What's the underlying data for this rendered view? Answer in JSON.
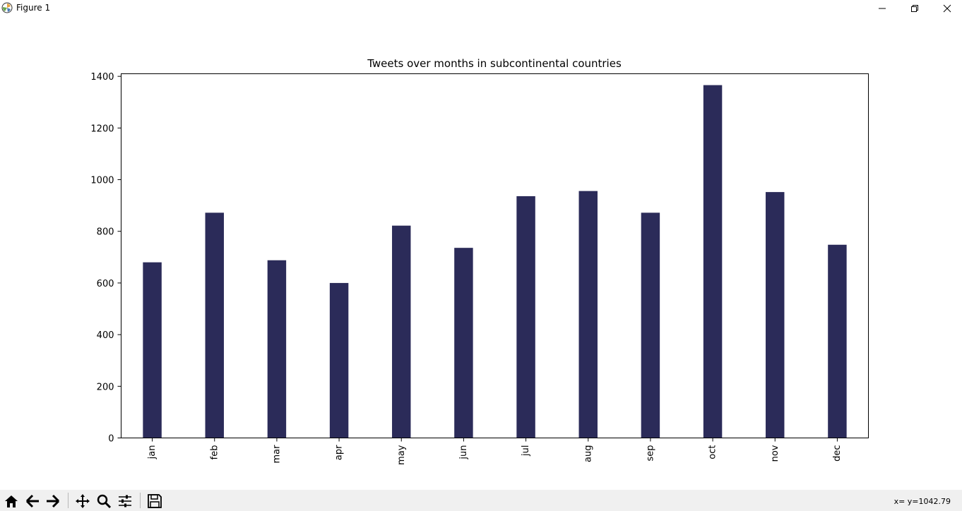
{
  "window": {
    "title": "Figure 1",
    "icons": {
      "app": "matplotlib-icon",
      "minimize": "minimize-icon",
      "maximize": "restore-icon",
      "close": "close-icon"
    }
  },
  "toolbar": {
    "buttons": [
      {
        "name": "home-icon"
      },
      {
        "name": "back-arrow-icon"
      },
      {
        "name": "forward-arrow-icon"
      },
      {
        "name": "pan-icon"
      },
      {
        "name": "zoom-icon"
      },
      {
        "name": "configure-subplots-icon"
      },
      {
        "name": "save-icon"
      }
    ],
    "coordinates": "x= y=1042.79"
  },
  "chart_data": {
    "type": "bar",
    "title": "Tweets over months in subcontinental countries",
    "xlabel": "",
    "ylabel": "",
    "categories": [
      "jan",
      "feb",
      "mar",
      "apr",
      "may",
      "jun",
      "jul",
      "aug",
      "sep",
      "oct",
      "nov",
      "dec"
    ],
    "values": [
      680,
      872,
      688,
      600,
      822,
      736,
      936,
      956,
      872,
      1366,
      952,
      748
    ],
    "ylim": [
      0,
      1410
    ],
    "yticks": [
      0,
      200,
      400,
      600,
      800,
      1000,
      1200,
      1400
    ],
    "bar_color": "#2b2b59",
    "grid": false,
    "xtick_rotation": "vertical"
  }
}
